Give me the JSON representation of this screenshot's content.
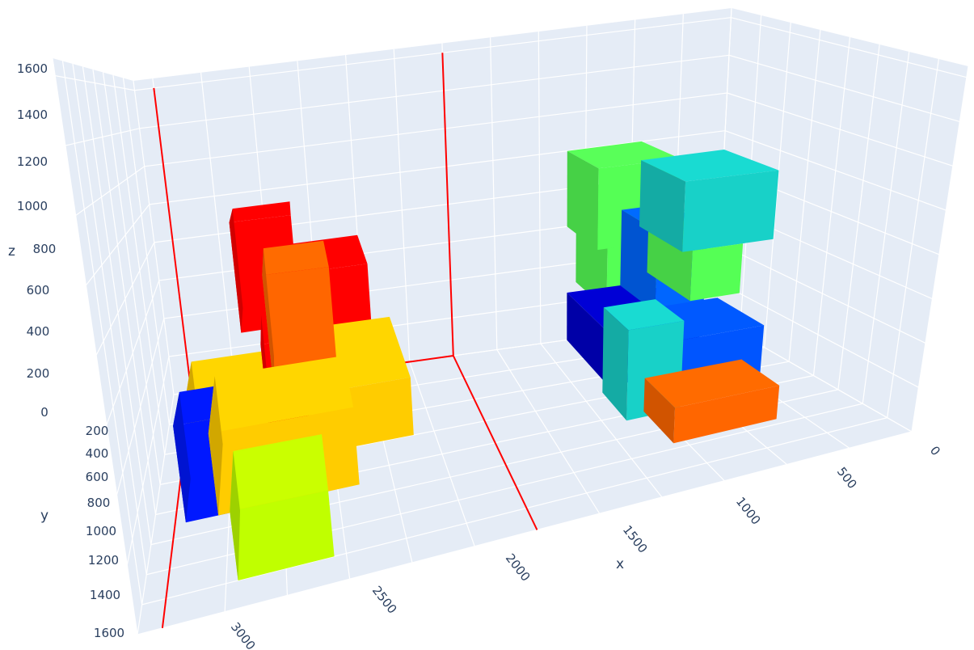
{
  "chart_data": {
    "type": "3d-box",
    "xlabel": "x",
    "ylabel": "y",
    "zlabel": "z",
    "z_ticks": [
      "0",
      "200",
      "400",
      "600",
      "800",
      "1000",
      "1200",
      "1400",
      "1600"
    ],
    "y_ticks": [
      "200",
      "400",
      "600",
      "800",
      "1000",
      "1200",
      "1400",
      "1600"
    ],
    "x_ticks": [
      "0",
      "500",
      "1000",
      "1500",
      "2000",
      "2500",
      "3000"
    ],
    "xlim": [
      0,
      3100
    ],
    "ylim": [
      0,
      1600
    ],
    "zlim": [
      0,
      1650
    ],
    "colors": {
      "background": "#e5ecf6",
      "grid": "#ffffff",
      "container_lines": "#ff0000"
    },
    "container": {
      "x": [
        1500,
        3000
      ],
      "y": [
        0,
        1600
      ],
      "z": [
        0,
        1600
      ]
    },
    "boxes": [
      {
        "x": [
          2750,
          2950
        ],
        "y": [
          600,
          900
        ],
        "z": [
          0,
          350
        ],
        "color": "#0018ff"
      },
      {
        "x": [
          2400,
          2950
        ],
        "y": [
          150,
          500
        ],
        "z": [
          0,
          250
        ],
        "color": "#ffcc00"
      },
      {
        "x": [
          2150,
          2800
        ],
        "y": [
          400,
          900
        ],
        "z": [
          0,
          300
        ],
        "color": "#ffcc00"
      },
      {
        "x": [
          2300,
          2700
        ],
        "y": [
          900,
          1400
        ],
        "z": [
          0,
          220
        ],
        "color": "#c0ff00"
      },
      {
        "x": [
          2200,
          2550
        ],
        "y": [
          200,
          500
        ],
        "z": [
          0,
          450
        ],
        "color": "#ff0000"
      },
      {
        "x": [
          2350,
          2650
        ],
        "y": [
          100,
          350
        ],
        "z": [
          450,
          950
        ],
        "color": "#ff0000"
      },
      {
        "x": [
          1850,
          2350
        ],
        "y": [
          0,
          600
        ],
        "z": [
          0,
          250
        ],
        "color": "#ffcc00"
      },
      {
        "x": [
          2000,
          2450
        ],
        "y": [
          0,
          400
        ],
        "z": [
          250,
          700
        ],
        "color": "#ff0000"
      },
      {
        "x": [
          2200,
          2500
        ],
        "y": [
          300,
          700
        ],
        "z": [
          300,
          800
        ],
        "color": "#ff6600"
      },
      {
        "x": [
          400,
          850
        ],
        "y": [
          0,
          500
        ],
        "z": [
          0,
          250
        ],
        "color": "#0000cc"
      },
      {
        "x": [
          200,
          700
        ],
        "y": [
          300,
          700
        ],
        "z": [
          0,
          250
        ],
        "color": "#0055ff"
      },
      {
        "x": [
          300,
          550
        ],
        "y": [
          0,
          350
        ],
        "z": [
          250,
          650
        ],
        "color": "#0066ff"
      },
      {
        "x": [
          150,
          400
        ],
        "y": [
          0,
          400
        ],
        "z": [
          300,
          550
        ],
        "color": "#55ff55"
      },
      {
        "x": [
          500,
          800
        ],
        "y": [
          0,
          350
        ],
        "z": [
          300,
          800
        ],
        "color": "#55ff55"
      },
      {
        "x": [
          450,
          850
        ],
        "y": [
          0,
          350
        ],
        "z": [
          600,
          1000
        ],
        "color": "#55ff55"
      },
      {
        "x": [
          0,
          450
        ],
        "y": [
          0,
          400
        ],
        "z": [
          550,
          900
        ],
        "color": "#18d1c8"
      },
      {
        "x": [
          650,
          900
        ],
        "y": [
          550,
          850
        ],
        "z": [
          0,
          400
        ],
        "color": "#18d1c8"
      },
      {
        "x": [
          350,
          800
        ],
        "y": [
          800,
          1150
        ],
        "z": [
          0,
          150
        ],
        "color": "#ff6600"
      }
    ]
  }
}
